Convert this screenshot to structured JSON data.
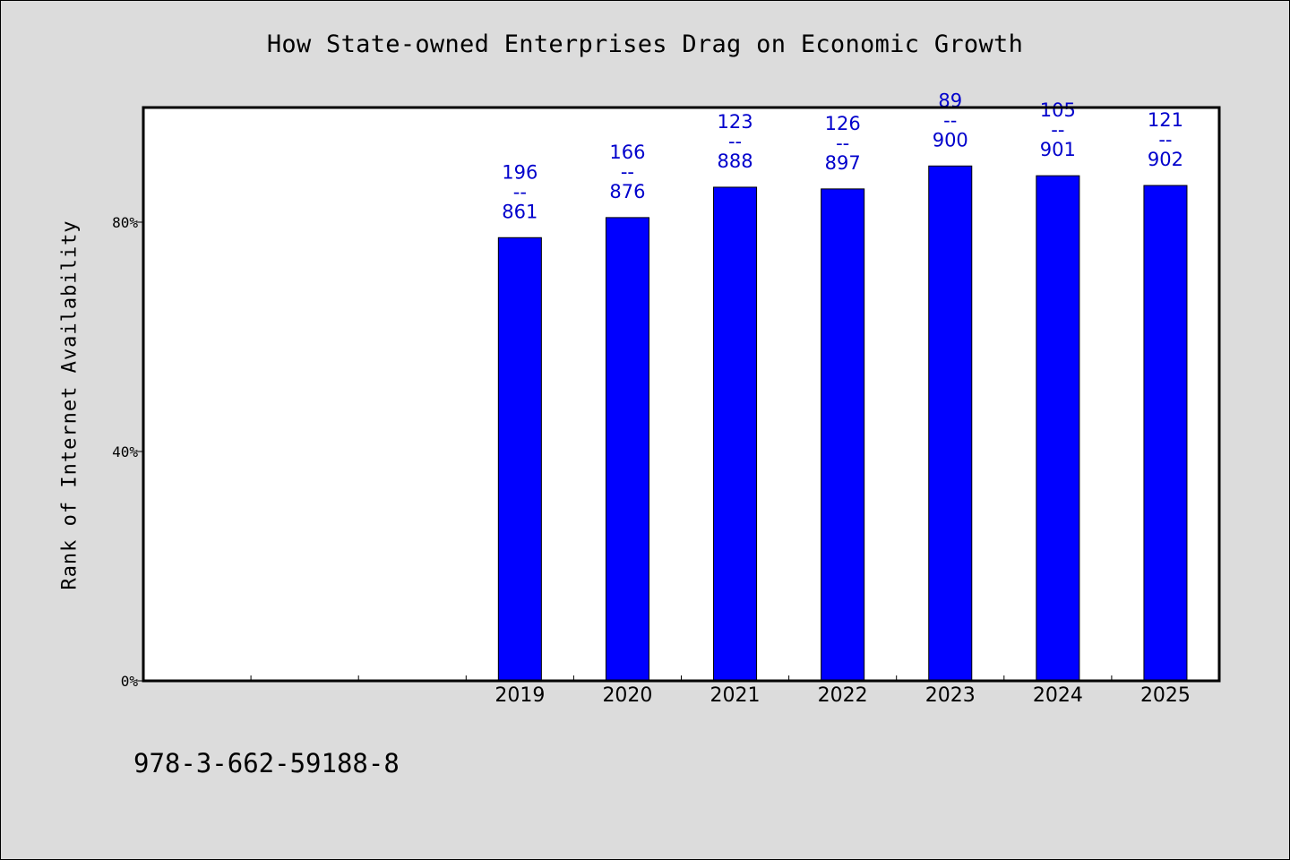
{
  "chart_data": {
    "type": "bar",
    "title": "How State-owned Enterprises Drag on Economic Growth",
    "xlabel": "",
    "ylabel": "Rank of Internet Availability",
    "ylim": [
      0,
      100
    ],
    "yticks": [
      0,
      40,
      80
    ],
    "ytick_labels": [
      "0%",
      "40%",
      "80%"
    ],
    "categories": [
      "",
      "",
      "",
      "2019",
      "2020",
      "2021",
      "2022",
      "2023",
      "2024",
      "2025"
    ],
    "values": [
      null,
      null,
      null,
      77.3,
      80.8,
      86.1,
      85.8,
      89.8,
      88.1,
      86.4
    ],
    "label_top": [
      null,
      null,
      null,
      "196",
      "166",
      "123",
      "126",
      "89",
      "105",
      "121"
    ],
    "label_sep": "--",
    "label_bottom": [
      null,
      null,
      null,
      "861",
      "876",
      "888",
      "897",
      "900",
      "901",
      "902"
    ],
    "grid": false,
    "legend": "none",
    "colors": {
      "bar": "#0000ff",
      "label": "#0000cc",
      "background": "#dcdcdc",
      "plot_background": "#ffffff"
    }
  },
  "footer": {
    "isbn": "978-3-662-59188-8"
  }
}
